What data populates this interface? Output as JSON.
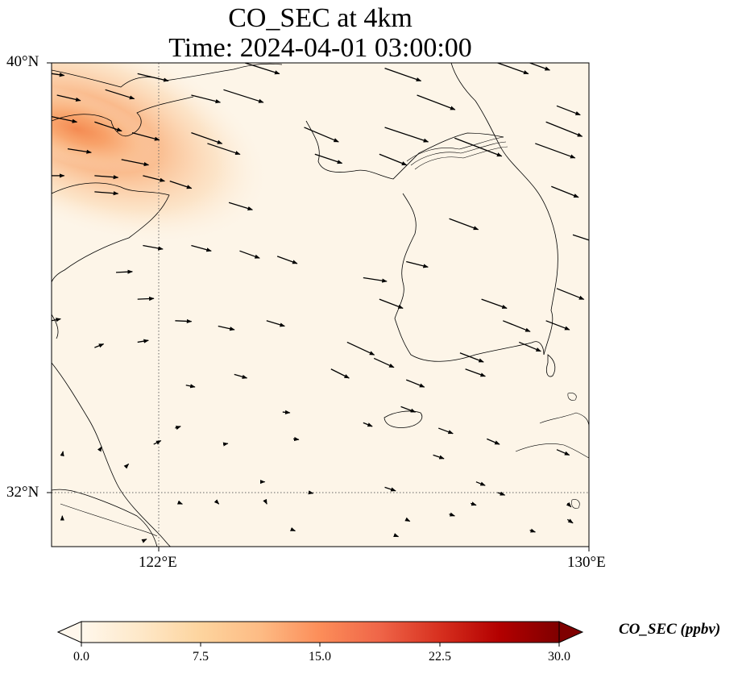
{
  "title": {
    "line1": "CO_SEC at 4km",
    "line2": "Time: 2024-04-01 03:00:00"
  },
  "map": {
    "lat_range": [
      31.0,
      40.0
    ],
    "lon_range": [
      120.0,
      130.0
    ],
    "lat_ticks": [
      {
        "value": 40,
        "label": "40°N"
      },
      {
        "value": 32,
        "label": "32°N"
      }
    ],
    "lon_ticks": [
      {
        "value": 122,
        "label": "122°E"
      },
      {
        "value": 130,
        "label": "130°E"
      }
    ],
    "gridline_style": "dotted",
    "coastline_color": "#000000",
    "background_color": "#fdf5e8",
    "plume_color": "#f4884f",
    "plume_peak_ppbv": 14
  },
  "colorbar": {
    "title": "CO_SEC (ppbv)",
    "min": 0,
    "max": 30,
    "ticks": [
      {
        "value": 0,
        "label": "0.0"
      },
      {
        "value": 7.5,
        "label": "7.5"
      },
      {
        "value": 15,
        "label": "15.0"
      },
      {
        "value": 22.5,
        "label": "22.5"
      },
      {
        "value": 30,
        "label": "30.0"
      }
    ],
    "extend": "both",
    "colormap": "OrRd",
    "stops": [
      "#fff7ec",
      "#fee8c8",
      "#fdd49e",
      "#fdbb84",
      "#fc8d59",
      "#ef6548",
      "#d7301f",
      "#b30000",
      "#7f0000"
    ]
  },
  "wind_vectors": [
    {
      "lon": 120.0,
      "lat": 39.8,
      "u": 0.35,
      "v": -0.05
    },
    {
      "lon": 121.6,
      "lat": 39.8,
      "u": 0.85,
      "v": -0.2
    },
    {
      "lon": 123.6,
      "lat": 40.0,
      "u": 0.95,
      "v": -0.3
    },
    {
      "lon": 126.2,
      "lat": 39.9,
      "u": 1.0,
      "v": -0.35
    },
    {
      "lon": 128.3,
      "lat": 40.0,
      "u": 0.85,
      "v": -0.3
    },
    {
      "lon": 128.9,
      "lat": 40.0,
      "u": 0.55,
      "v": -0.2
    },
    {
      "lon": 120.1,
      "lat": 39.4,
      "u": 0.65,
      "v": -0.15
    },
    {
      "lon": 121.0,
      "lat": 39.5,
      "u": 0.8,
      "v": -0.25
    },
    {
      "lon": 122.6,
      "lat": 39.4,
      "u": 0.8,
      "v": -0.2
    },
    {
      "lon": 123.2,
      "lat": 39.5,
      "u": 1.1,
      "v": -0.35
    },
    {
      "lon": 126.8,
      "lat": 39.4,
      "u": 1.05,
      "v": -0.4
    },
    {
      "lon": 129.4,
      "lat": 39.2,
      "u": 0.65,
      "v": -0.25
    },
    {
      "lon": 120.0,
      "lat": 39.0,
      "u": 0.7,
      "v": -0.15
    },
    {
      "lon": 120.8,
      "lat": 38.9,
      "u": 0.75,
      "v": -0.25
    },
    {
      "lon": 121.5,
      "lat": 38.7,
      "u": 0.75,
      "v": -0.2
    },
    {
      "lon": 122.6,
      "lat": 38.7,
      "u": 0.85,
      "v": -0.3
    },
    {
      "lon": 124.7,
      "lat": 38.8,
      "u": 0.95,
      "v": -0.4
    },
    {
      "lon": 126.2,
      "lat": 38.8,
      "u": 1.2,
      "v": -0.4
    },
    {
      "lon": 129.2,
      "lat": 38.9,
      "u": 1.0,
      "v": -0.4
    },
    {
      "lon": 120.3,
      "lat": 38.4,
      "u": 0.65,
      "v": -0.1
    },
    {
      "lon": 121.3,
      "lat": 38.2,
      "u": 0.75,
      "v": -0.15
    },
    {
      "lon": 122.9,
      "lat": 38.5,
      "u": 0.9,
      "v": -0.3
    },
    {
      "lon": 124.9,
      "lat": 38.3,
      "u": 0.75,
      "v": -0.25
    },
    {
      "lon": 126.1,
      "lat": 38.3,
      "u": 0.75,
      "v": -0.3
    },
    {
      "lon": 127.5,
      "lat": 38.6,
      "u": 1.3,
      "v": -0.5
    },
    {
      "lon": 129.0,
      "lat": 38.5,
      "u": 1.1,
      "v": -0.4
    },
    {
      "lon": 120.0,
      "lat": 37.9,
      "u": 0.35,
      "v": 0.0
    },
    {
      "lon": 120.8,
      "lat": 37.9,
      "u": 0.65,
      "v": -0.05
    },
    {
      "lon": 121.7,
      "lat": 37.9,
      "u": 0.6,
      "v": -0.15
    },
    {
      "lon": 122.2,
      "lat": 37.8,
      "u": 0.6,
      "v": -0.2
    },
    {
      "lon": 129.3,
      "lat": 37.7,
      "u": 0.75,
      "v": -0.3
    },
    {
      "lon": 120.8,
      "lat": 37.6,
      "u": 0.65,
      "v": -0.05
    },
    {
      "lon": 123.3,
      "lat": 37.4,
      "u": 0.65,
      "v": -0.2
    },
    {
      "lon": 127.4,
      "lat": 37.1,
      "u": 0.8,
      "v": -0.3
    },
    {
      "lon": 129.7,
      "lat": 36.8,
      "u": 0.75,
      "v": -0.25
    },
    {
      "lon": 121.7,
      "lat": 36.6,
      "u": 0.55,
      "v": -0.1
    },
    {
      "lon": 122.6,
      "lat": 36.6,
      "u": 0.55,
      "v": -0.15
    },
    {
      "lon": 123.5,
      "lat": 36.5,
      "u": 0.55,
      "v": -0.2
    },
    {
      "lon": 124.2,
      "lat": 36.4,
      "u": 0.55,
      "v": -0.2
    },
    {
      "lon": 125.8,
      "lat": 36.0,
      "u": 0.65,
      "v": -0.1
    },
    {
      "lon": 126.6,
      "lat": 36.3,
      "u": 0.6,
      "v": -0.15
    },
    {
      "lon": 128.0,
      "lat": 35.6,
      "u": 0.7,
      "v": -0.25
    },
    {
      "lon": 129.4,
      "lat": 35.8,
      "u": 0.75,
      "v": -0.3
    },
    {
      "lon": 121.2,
      "lat": 36.1,
      "u": 0.45,
      "v": 0.02
    },
    {
      "lon": 121.6,
      "lat": 35.6,
      "u": 0.45,
      "v": 0.02
    },
    {
      "lon": 120.0,
      "lat": 35.2,
      "u": 0.25,
      "v": 0.05
    },
    {
      "lon": 122.3,
      "lat": 35.2,
      "u": 0.45,
      "v": -0.02
    },
    {
      "lon": 123.1,
      "lat": 35.1,
      "u": 0.45,
      "v": -0.1
    },
    {
      "lon": 124.0,
      "lat": 35.2,
      "u": 0.5,
      "v": -0.15
    },
    {
      "lon": 126.1,
      "lat": 35.6,
      "u": 0.65,
      "v": -0.25
    },
    {
      "lon": 127.6,
      "lat": 34.6,
      "u": 0.65,
      "v": -0.25
    },
    {
      "lon": 128.4,
      "lat": 35.2,
      "u": 0.75,
      "v": -0.3
    },
    {
      "lon": 129.2,
      "lat": 35.2,
      "u": 0.65,
      "v": -0.25
    },
    {
      "lon": 125.5,
      "lat": 34.8,
      "u": 0.75,
      "v": -0.35
    },
    {
      "lon": 126.0,
      "lat": 34.5,
      "u": 0.55,
      "v": -0.25
    },
    {
      "lon": 125.2,
      "lat": 34.3,
      "u": 0.5,
      "v": -0.25
    },
    {
      "lon": 126.6,
      "lat": 34.1,
      "u": 0.5,
      "v": -0.2
    },
    {
      "lon": 127.7,
      "lat": 34.3,
      "u": 0.55,
      "v": -0.2
    },
    {
      "lon": 126.5,
      "lat": 33.6,
      "u": 0.4,
      "v": -0.15
    },
    {
      "lon": 128.7,
      "lat": 34.8,
      "u": 0.6,
      "v": -0.25
    },
    {
      "lon": 120.8,
      "lat": 34.7,
      "u": 0.25,
      "v": 0.1
    },
    {
      "lon": 121.6,
      "lat": 34.8,
      "u": 0.3,
      "v": 0.05
    },
    {
      "lon": 123.4,
      "lat": 34.2,
      "u": 0.35,
      "v": -0.1
    },
    {
      "lon": 122.5,
      "lat": 34.0,
      "u": 0.25,
      "v": -0.05
    },
    {
      "lon": 128.1,
      "lat": 33.0,
      "u": 0.35,
      "v": -0.15
    },
    {
      "lon": 129.4,
      "lat": 32.8,
      "u": 0.35,
      "v": -0.15
    },
    {
      "lon": 127.2,
      "lat": 33.2,
      "u": 0.4,
      "v": -0.15
    },
    {
      "lon": 121.9,
      "lat": 32.9,
      "u": 0.2,
      "v": 0.1
    },
    {
      "lon": 122.3,
      "lat": 33.2,
      "u": 0.15,
      "v": 0.05
    },
    {
      "lon": 123.2,
      "lat": 32.9,
      "u": 0.12,
      "v": 0.02
    },
    {
      "lon": 124.3,
      "lat": 33.5,
      "u": 0.2,
      "v": -0.02
    },
    {
      "lon": 124.5,
      "lat": 33.0,
      "u": 0.15,
      "v": -0.02
    },
    {
      "lon": 125.8,
      "lat": 33.3,
      "u": 0.25,
      "v": -0.1
    },
    {
      "lon": 126.2,
      "lat": 32.1,
      "u": 0.3,
      "v": -0.1
    },
    {
      "lon": 127.1,
      "lat": 32.7,
      "u": 0.3,
      "v": -0.1
    },
    {
      "lon": 127.9,
      "lat": 32.2,
      "u": 0.25,
      "v": -0.1
    },
    {
      "lon": 128.3,
      "lat": 32.0,
      "u": 0.2,
      "v": -0.07
    },
    {
      "lon": 120.9,
      "lat": 32.8,
      "u": 0.05,
      "v": 0.08
    },
    {
      "lon": 121.4,
      "lat": 32.5,
      "u": 0.05,
      "v": 0.05
    },
    {
      "lon": 120.2,
      "lat": 32.7,
      "u": 0.02,
      "v": 0.1
    },
    {
      "lon": 123.9,
      "lat": 32.2,
      "u": 0.1,
      "v": 0.0
    },
    {
      "lon": 124.8,
      "lat": 32.0,
      "u": 0.1,
      "v": -0.02
    },
    {
      "lon": 122.4,
      "lat": 31.8,
      "u": 0.05,
      "v": -0.02
    },
    {
      "lon": 123.1,
      "lat": 31.8,
      "u": 0.02,
      "v": -0.02
    },
    {
      "lon": 124.0,
      "lat": 31.8,
      "u": 0.01,
      "v": -0.02
    },
    {
      "lon": 126.6,
      "lat": 31.5,
      "u": 0.1,
      "v": -0.05
    },
    {
      "lon": 127.4,
      "lat": 31.6,
      "u": 0.15,
      "v": -0.05
    },
    {
      "lon": 127.8,
      "lat": 31.8,
      "u": 0.15,
      "v": -0.05
    },
    {
      "lon": 129.6,
      "lat": 31.8,
      "u": 0.1,
      "v": -0.1
    },
    {
      "lon": 121.7,
      "lat": 31.1,
      "u": 0.1,
      "v": 0.05
    },
    {
      "lon": 128.9,
      "lat": 31.3,
      "u": 0.15,
      "v": -0.05
    },
    {
      "lon": 126.4,
      "lat": 31.2,
      "u": 0.08,
      "v": -0.03
    },
    {
      "lon": 120.2,
      "lat": 31.5,
      "u": 0.0,
      "v": 0.1
    },
    {
      "lon": 124.5,
      "lat": 31.3,
      "u": 0.05,
      "v": -0.02
    },
    {
      "lon": 129.6,
      "lat": 31.5,
      "u": 0.15,
      "v": -0.1
    }
  ]
}
